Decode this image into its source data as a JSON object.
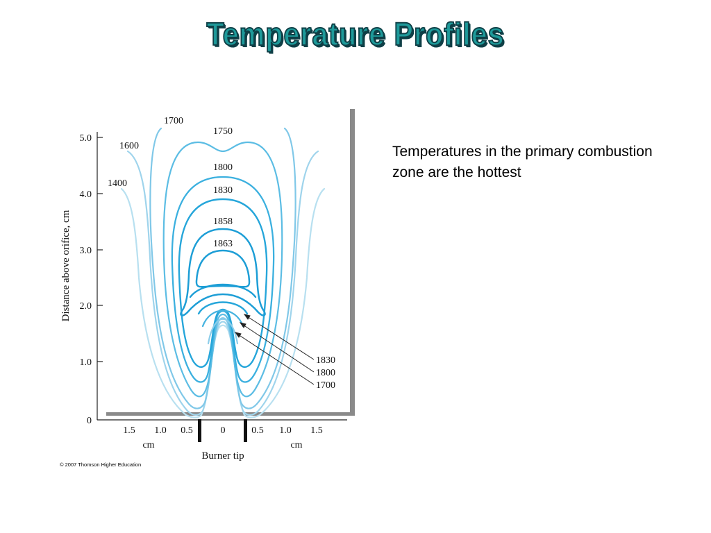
{
  "title": "Temperature Profiles",
  "caption": "Temperatures in the primary combustion zone are the hottest",
  "copyright": "© 2007 Thomson Higher Education",
  "figure": {
    "y_axis_label": "Distance above orifice, cm",
    "y_ticks": [
      "5.0",
      "4.0",
      "3.0",
      "2.0",
      "1.0",
      "0"
    ],
    "x_ticks": [
      "1.5",
      "1.0",
      "0.5",
      "0",
      "0.5",
      "1.0",
      "1.5"
    ],
    "x_unit_left": "cm",
    "x_unit_right": "cm",
    "burner_label": "Burner tip",
    "isotherm_labels": [
      "1700",
      "1750",
      "1600",
      "1400",
      "1800",
      "1830",
      "1858",
      "1863"
    ],
    "inner_labels": [
      "1830",
      "1800",
      "1700"
    ],
    "colors": {
      "light": "#a8d8ec",
      "mid": "#6cc1e3",
      "dark": "#2aa3d8",
      "title_fill": "#1e9a9a"
    }
  }
}
